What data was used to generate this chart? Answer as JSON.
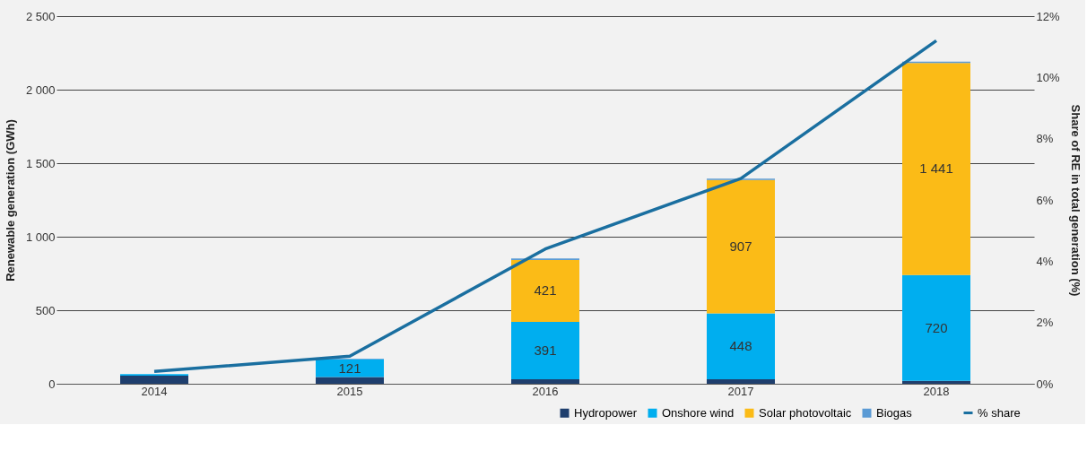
{
  "chart_data": {
    "type": "bar",
    "stacked": true,
    "categories": [
      "2014",
      "2015",
      "2016",
      "2017",
      "2018"
    ],
    "ylabel": "Renewable generation (GWh)",
    "y2label": "Share of RE in total generation (%)",
    "ylim": [
      0,
      2500
    ],
    "yticks": [
      0,
      500,
      {
        "value": 1000,
        "label": "1 000"
      },
      {
        "value": 1500,
        "label": "1 500"
      },
      {
        "value": 2000,
        "label": "2 000"
      },
      {
        "value": 2500,
        "label": "2 500"
      }
    ],
    "y2lim": [
      0,
      12
    ],
    "y2ticks": [
      {
        "value": 0,
        "label": "0%"
      },
      {
        "value": 2,
        "label": "2%"
      },
      {
        "value": 4,
        "label": "4%"
      },
      {
        "value": 6,
        "label": "6%"
      },
      {
        "value": 8,
        "label": "8%"
      },
      {
        "value": 10,
        "label": "10%"
      },
      {
        "value": 12,
        "label": "12%"
      }
    ],
    "grid": "y",
    "legend": "bottom right",
    "series": [
      {
        "name": "Hydropower",
        "color": "#1f3f6e",
        "values": [
          55,
          45,
          30,
          30,
          20
        ]
      },
      {
        "name": "Onshore wind",
        "color": "#00aeef",
        "values": [
          10,
          121,
          391,
          448,
          720
        ],
        "value_labels": [
          null,
          "121",
          "391",
          "448",
          "720"
        ]
      },
      {
        "name": "Solar photovoltaic",
        "color": "#fbbb17",
        "values": [
          0,
          0,
          421,
          907,
          1441
        ],
        "value_labels": [
          null,
          null,
          "421",
          "907",
          "1 441"
        ]
      },
      {
        "name": "Biogas",
        "color": "#5b9bd5",
        "values": [
          null,
          5,
          10,
          10,
          10
        ]
      },
      {
        "name": "% share",
        "type": "line",
        "axis": "y2",
        "color": "#1a6fa0",
        "values": [
          0.4,
          0.9,
          4.4,
          6.7,
          11.2
        ]
      }
    ]
  }
}
